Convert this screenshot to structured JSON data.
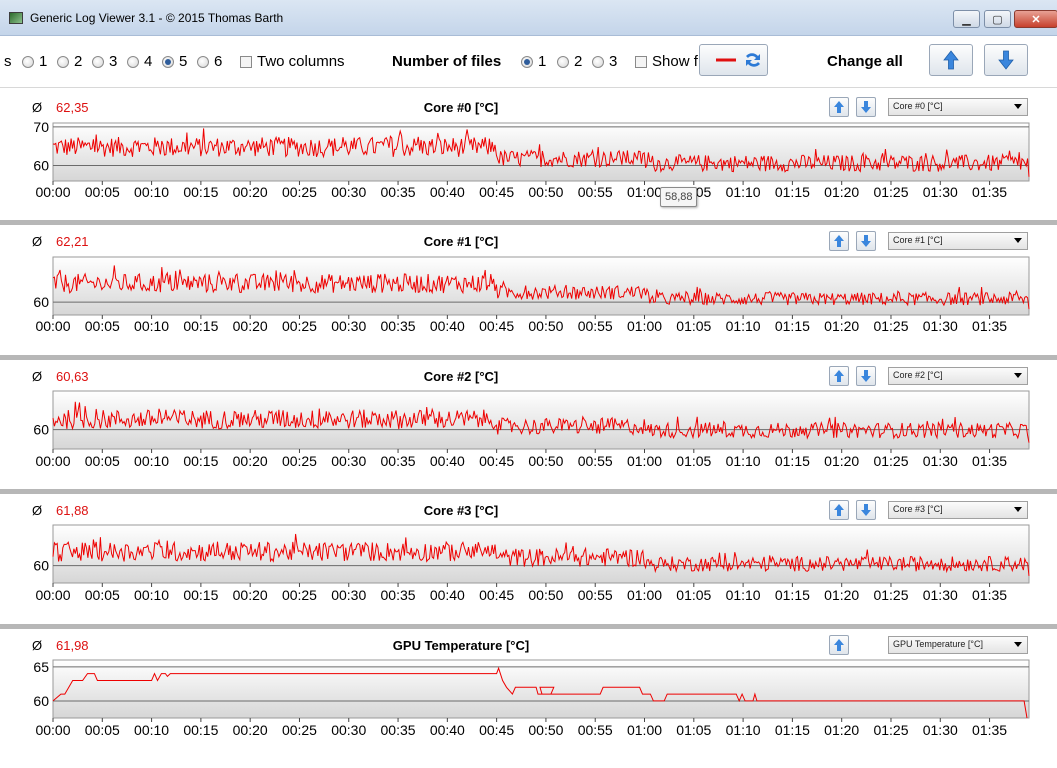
{
  "window": {
    "title": "Generic Log Viewer 3.1 - © 2015 Thomas Barth",
    "minimize_label": "▁",
    "maximize_label": "▢",
    "close_label": "✕"
  },
  "toolbar": {
    "leading_cut_label": "s",
    "layout_options": [
      "1",
      "2",
      "3",
      "4",
      "5",
      "6"
    ],
    "layout_selected": "5",
    "two_columns_label": "Two columns",
    "files_label": "Number of files",
    "file_options": [
      "1",
      "2",
      "3"
    ],
    "file_selected": "1",
    "show_label": "Show f",
    "change_all_label": "Change all"
  },
  "tooltip": {
    "text": "58,88"
  },
  "panels": [
    {
      "avg_symbol": "Ø",
      "avg": "62,35",
      "title": "Core #0 [°C]",
      "combo": "Core #0 [°C]"
    },
    {
      "avg_symbol": "Ø",
      "avg": "62,21",
      "title": "Core #1 [°C]",
      "combo": "Core #1 [°C]"
    },
    {
      "avg_symbol": "Ø",
      "avg": "60,63",
      "title": "Core #2 [°C]",
      "combo": "Core #2 [°C]"
    },
    {
      "avg_symbol": "Ø",
      "avg": "61,88",
      "title": "Core #3 [°C]",
      "combo": "Core #3 [°C]"
    },
    {
      "avg_symbol": "Ø",
      "avg": "61,98",
      "title": "GPU Temperature [°C]",
      "combo": "GPU Temperature [°C]"
    }
  ],
  "colors": {
    "series": "#ee0000",
    "avg_text": "#dd1111"
  },
  "chart_data": [
    {
      "type": "line",
      "title": "Core #0 [°C]",
      "ylabel_ticks": [
        "70",
        "60"
      ],
      "ylim": [
        56,
        71
      ],
      "xlim": [
        0,
        99
      ],
      "x_tick_labels": [
        "00:00",
        "00:05",
        "00:10",
        "00:15",
        "00:20",
        "00:25",
        "00:30",
        "00:35",
        "00:40",
        "00:45",
        "00:50",
        "00:55",
        "01:00",
        "01:05",
        "01:10",
        "01:15",
        "01:20",
        "01:25",
        "01:30",
        "01:35"
      ],
      "series": [
        {
          "segments": [
            {
              "x0": 0,
              "x1": 45,
              "mean": 64.8,
              "amp": 2.6
            },
            {
              "x0": 45,
              "x1": 60,
              "mean": 61.8,
              "amp": 2.2
            },
            {
              "x0": 60,
              "x1": 99,
              "mean": 60.6,
              "amp": 2.2
            }
          ]
        }
      ]
    },
    {
      "type": "line",
      "title": "Core #1 [°C]",
      "ylabel_ticks": [
        "60"
      ],
      "ylim": [
        58,
        67
      ],
      "xlim": [
        0,
        99
      ],
      "x_tick_labels": [
        "00:00",
        "00:05",
        "00:10",
        "00:15",
        "00:20",
        "00:25",
        "00:30",
        "00:35",
        "00:40",
        "00:45",
        "00:50",
        "00:55",
        "01:00",
        "01:05",
        "01:10",
        "01:15",
        "01:20",
        "01:25",
        "01:30",
        "01:35"
      ],
      "series": [
        {
          "segments": [
            {
              "x0": 0,
              "x1": 45,
              "mean": 62.9,
              "amp": 1.5
            },
            {
              "x0": 45,
              "x1": 60,
              "mean": 61.5,
              "amp": 1.1
            },
            {
              "x0": 60,
              "x1": 99,
              "mean": 60.5,
              "amp": 1.0
            }
          ]
        }
      ]
    },
    {
      "type": "line",
      "title": "Core #2 [°C]",
      "ylabel_ticks": [
        "60"
      ],
      "ylim": [
        57,
        66
      ],
      "xlim": [
        0,
        99
      ],
      "x_tick_labels": [
        "00:00",
        "00:05",
        "00:10",
        "00:15",
        "00:20",
        "00:25",
        "00:30",
        "00:35",
        "00:40",
        "00:45",
        "00:50",
        "00:55",
        "01:00",
        "01:05",
        "01:10",
        "01:15",
        "01:20",
        "01:25",
        "01:30",
        "01:35"
      ],
      "series": [
        {
          "segments": [
            {
              "x0": 0,
              "x1": 45,
              "mean": 61.6,
              "amp": 1.5
            },
            {
              "x0": 45,
              "x1": 60,
              "mean": 60.5,
              "amp": 1.3
            },
            {
              "x0": 60,
              "x1": 99,
              "mean": 59.9,
              "amp": 1.2
            }
          ]
        }
      ]
    },
    {
      "type": "line",
      "title": "Core #3 [°C]",
      "ylabel_ticks": [
        "60"
      ],
      "ylim": [
        57,
        67
      ],
      "xlim": [
        0,
        99
      ],
      "x_tick_labels": [
        "00:00",
        "00:05",
        "00:10",
        "00:15",
        "00:20",
        "00:25",
        "00:30",
        "00:35",
        "00:40",
        "00:45",
        "00:50",
        "00:55",
        "01:00",
        "01:05",
        "01:10",
        "01:15",
        "01:20",
        "01:25",
        "01:30",
        "01:35"
      ],
      "series": [
        {
          "segments": [
            {
              "x0": 0,
              "x1": 45,
              "mean": 62.4,
              "amp": 1.7
            },
            {
              "x0": 45,
              "x1": 60,
              "mean": 61.4,
              "amp": 1.6
            },
            {
              "x0": 60,
              "x1": 99,
              "mean": 60.3,
              "amp": 1.3
            }
          ]
        }
      ]
    },
    {
      "type": "line",
      "title": "GPU Temperature [°C]",
      "ylabel_ticks": [
        "65",
        "60"
      ],
      "ylim": [
        57.5,
        66
      ],
      "xlim": [
        0,
        99
      ],
      "x_tick_labels": [
        "00:00",
        "00:05",
        "00:10",
        "00:15",
        "00:20",
        "00:25",
        "00:30",
        "00:35",
        "00:40",
        "00:45",
        "00:50",
        "00:55",
        "01:00",
        "01:05",
        "01:10",
        "01:15",
        "01:20",
        "01:25",
        "01:30",
        "01:35"
      ],
      "series": [
        {
          "points": [
            [
              0,
              60
            ],
            [
              0.8,
              61
            ],
            [
              1.2,
              61
            ],
            [
              1.6,
              62
            ],
            [
              2.0,
              63
            ],
            [
              3.0,
              63
            ],
            [
              3.5,
              64
            ],
            [
              4.2,
              64
            ],
            [
              4.5,
              63
            ],
            [
              10,
              63
            ],
            [
              10.3,
              64
            ],
            [
              10.6,
              63
            ],
            [
              11,
              64
            ],
            [
              11.4,
              64
            ],
            [
              11.6,
              63.6
            ],
            [
              11.9,
              64
            ],
            [
              45,
              64
            ],
            [
              45.2,
              64.8
            ],
            [
              45.6,
              63
            ],
            [
              46,
              62
            ],
            [
              46.6,
              61
            ],
            [
              46.9,
              62
            ],
            [
              49,
              62
            ],
            [
              49.2,
              61
            ],
            [
              50.5,
              61
            ],
            [
              50.8,
              62
            ],
            [
              49.4,
              62
            ],
            [
              49.6,
              61
            ],
            [
              55.5,
              61
            ],
            [
              55.8,
              62
            ],
            [
              59.5,
              62
            ],
            [
              59.8,
              61
            ],
            [
              60.6,
              61
            ],
            [
              60.9,
              60
            ],
            [
              62,
              60
            ],
            [
              62.3,
              61
            ],
            [
              63.5,
              61
            ],
            [
              63.8,
              61
            ],
            [
              69.3,
              61
            ],
            [
              69.6,
              60
            ],
            [
              69.9,
              61
            ],
            [
              70.2,
              60
            ],
            [
              71,
              60
            ],
            [
              71.2,
              61
            ],
            [
              71.4,
              60
            ],
            [
              98.5,
              60
            ],
            [
              98.8,
              57.5
            ]
          ]
        }
      ]
    }
  ]
}
